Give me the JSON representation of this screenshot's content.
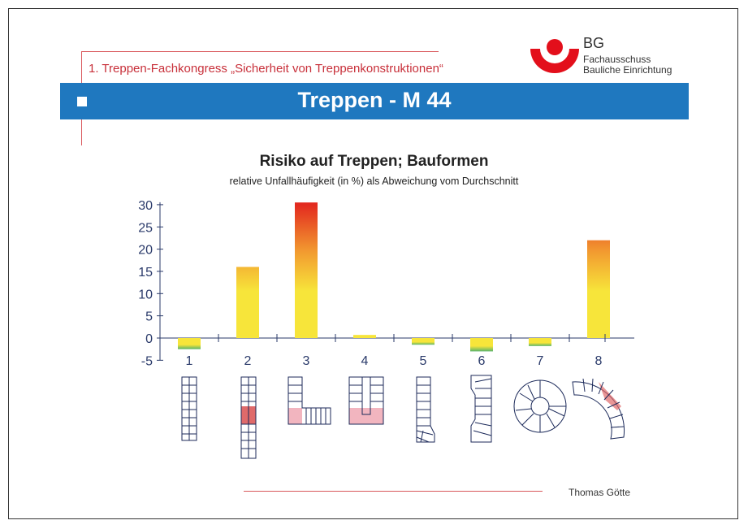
{
  "header": {
    "conference": "1. Treppen-Fachkongress „Sicherheit von Treppenkonstruktionen“",
    "title": "Treppen - M 44"
  },
  "logo": {
    "abbr": "BG",
    "line1": "Fachausschuss",
    "line2": "Bauliche Einrichtung",
    "color": "#e30f1b"
  },
  "footer": {
    "author": "Thomas Götte"
  },
  "colors": {
    "accent": "#1f78bf",
    "line": "#d9585c"
  },
  "chart_data": {
    "type": "bar",
    "title": "Risiko auf Treppen; Bauformen",
    "subtitle": "relative Unfallhäufigkeit (in %) als Abweichung vom Durchschnitt",
    "categories": [
      "1",
      "2",
      "3",
      "4",
      "5",
      "6",
      "7",
      "8"
    ],
    "values": [
      -2.5,
      16,
      30.5,
      0.7,
      -1.5,
      -3,
      -1.8,
      22
    ],
    "yticks": [
      30,
      25,
      20,
      15,
      10,
      5,
      0,
      -5
    ],
    "ylim": [
      -5,
      30
    ],
    "grid": false,
    "bar_gradient": [
      "#f7e53a",
      "#e32a1f"
    ],
    "negative_color": "#57b36a"
  }
}
